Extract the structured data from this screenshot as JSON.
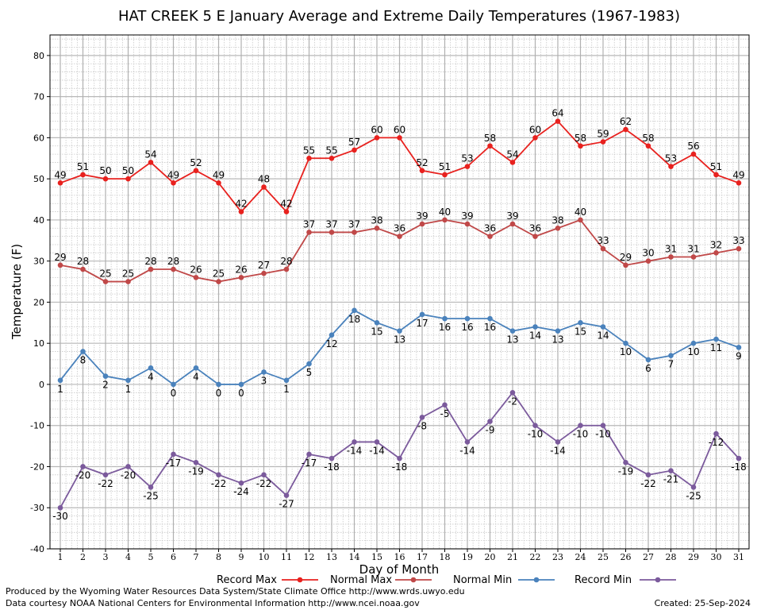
{
  "chart_data": {
    "type": "line",
    "title": "HAT CREEK 5 E January Average and Extreme Daily Temperatures (1967-1983)",
    "xlabel": "Day of Month",
    "ylabel": "Temperature (F)",
    "ylim": [
      -40,
      85
    ],
    "yticks": [
      -40,
      -30,
      -20,
      -10,
      0,
      10,
      20,
      30,
      40,
      50,
      60,
      70,
      80
    ],
    "x": [
      1,
      2,
      3,
      4,
      5,
      6,
      7,
      8,
      9,
      10,
      11,
      12,
      13,
      14,
      15,
      16,
      17,
      18,
      19,
      20,
      21,
      22,
      23,
      24,
      25,
      26,
      27,
      28,
      29,
      30,
      31
    ],
    "grid": true,
    "legend_position": "bottom",
    "series": [
      {
        "name": "Record Max",
        "color": "#e8211e",
        "label_pos": "above",
        "values": [
          49,
          51,
          50,
          50,
          54,
          49,
          52,
          49,
          42,
          48,
          42,
          55,
          55,
          57,
          60,
          60,
          52,
          51,
          53,
          58,
          54,
          60,
          64,
          58,
          59,
          62,
          58,
          53,
          56,
          51,
          49
        ]
      },
      {
        "name": "Normal Max",
        "color": "#c04848",
        "label_pos": "above",
        "values": [
          29,
          28,
          25,
          25,
          28,
          28,
          26,
          25,
          26,
          27,
          28,
          37,
          37,
          37,
          38,
          36,
          39,
          40,
          39,
          36,
          39,
          36,
          38,
          40,
          33,
          29,
          30,
          31,
          31,
          32,
          33
        ]
      },
      {
        "name": "Normal Min",
        "color": "#4a82bc",
        "label_pos": "below",
        "values": [
          1,
          8,
          2,
          1,
          4,
          0,
          4,
          0,
          0,
          3,
          1,
          5,
          12,
          18,
          15,
          13,
          17,
          16,
          16,
          16,
          13,
          14,
          13,
          15,
          14,
          10,
          6,
          7,
          10,
          11,
          9
        ]
      },
      {
        "name": "Record Min",
        "color": "#7b5a9c",
        "label_pos": "below",
        "values": [
          -30,
          -20,
          -22,
          -20,
          -25,
          -17,
          -19,
          -22,
          -24,
          -22,
          -27,
          -17,
          -18,
          -14,
          -14,
          -18,
          -8,
          -5,
          -14,
          -9,
          -2,
          -10,
          -14,
          -10,
          -10,
          -19,
          -22,
          -21,
          -25,
          -12,
          -18
        ]
      }
    ]
  },
  "footer": {
    "line1": "Produced by the Wyoming Water Resources Data System/State Climate Office http://www.wrds.uwyo.edu",
    "line2": "Data courtesy NOAA National Centers for Environmental Information http://www.ncei.noaa.gov",
    "created": "Created:  25-Sep-2024"
  }
}
